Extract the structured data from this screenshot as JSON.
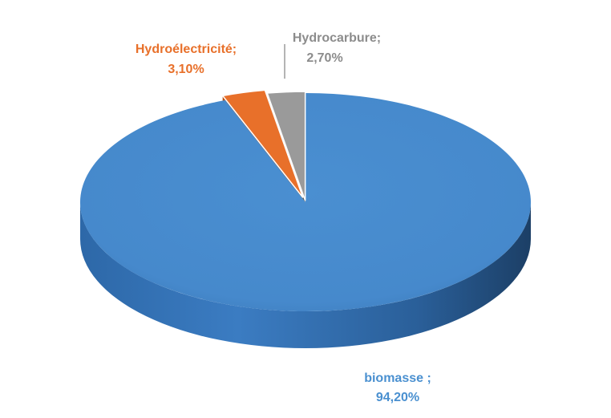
{
  "chart_data": {
    "type": "pie",
    "title": "",
    "slices": [
      {
        "label": "biomasse",
        "value": 94.2,
        "display": "94,20%",
        "color": "#4a90d0"
      },
      {
        "label": "Hydroélectricité",
        "value": 3.1,
        "display": "3,10%",
        "color": "#e8702a"
      },
      {
        "label": "Hydrocarbure",
        "value": 2.7,
        "display": "2,70%",
        "color": "#9a9a9a"
      }
    ],
    "data_labels": {
      "biomasse": {
        "line1": "biomasse ;",
        "line2": "94,20%"
      },
      "hydro": {
        "line1": "Hydroélectricité;",
        "line2": "3,10%"
      },
      "hydrocarbure": {
        "line1": "Hydrocarbure;",
        "line2": "2,70%"
      }
    },
    "legend": "none",
    "style": "3d-exploded"
  }
}
